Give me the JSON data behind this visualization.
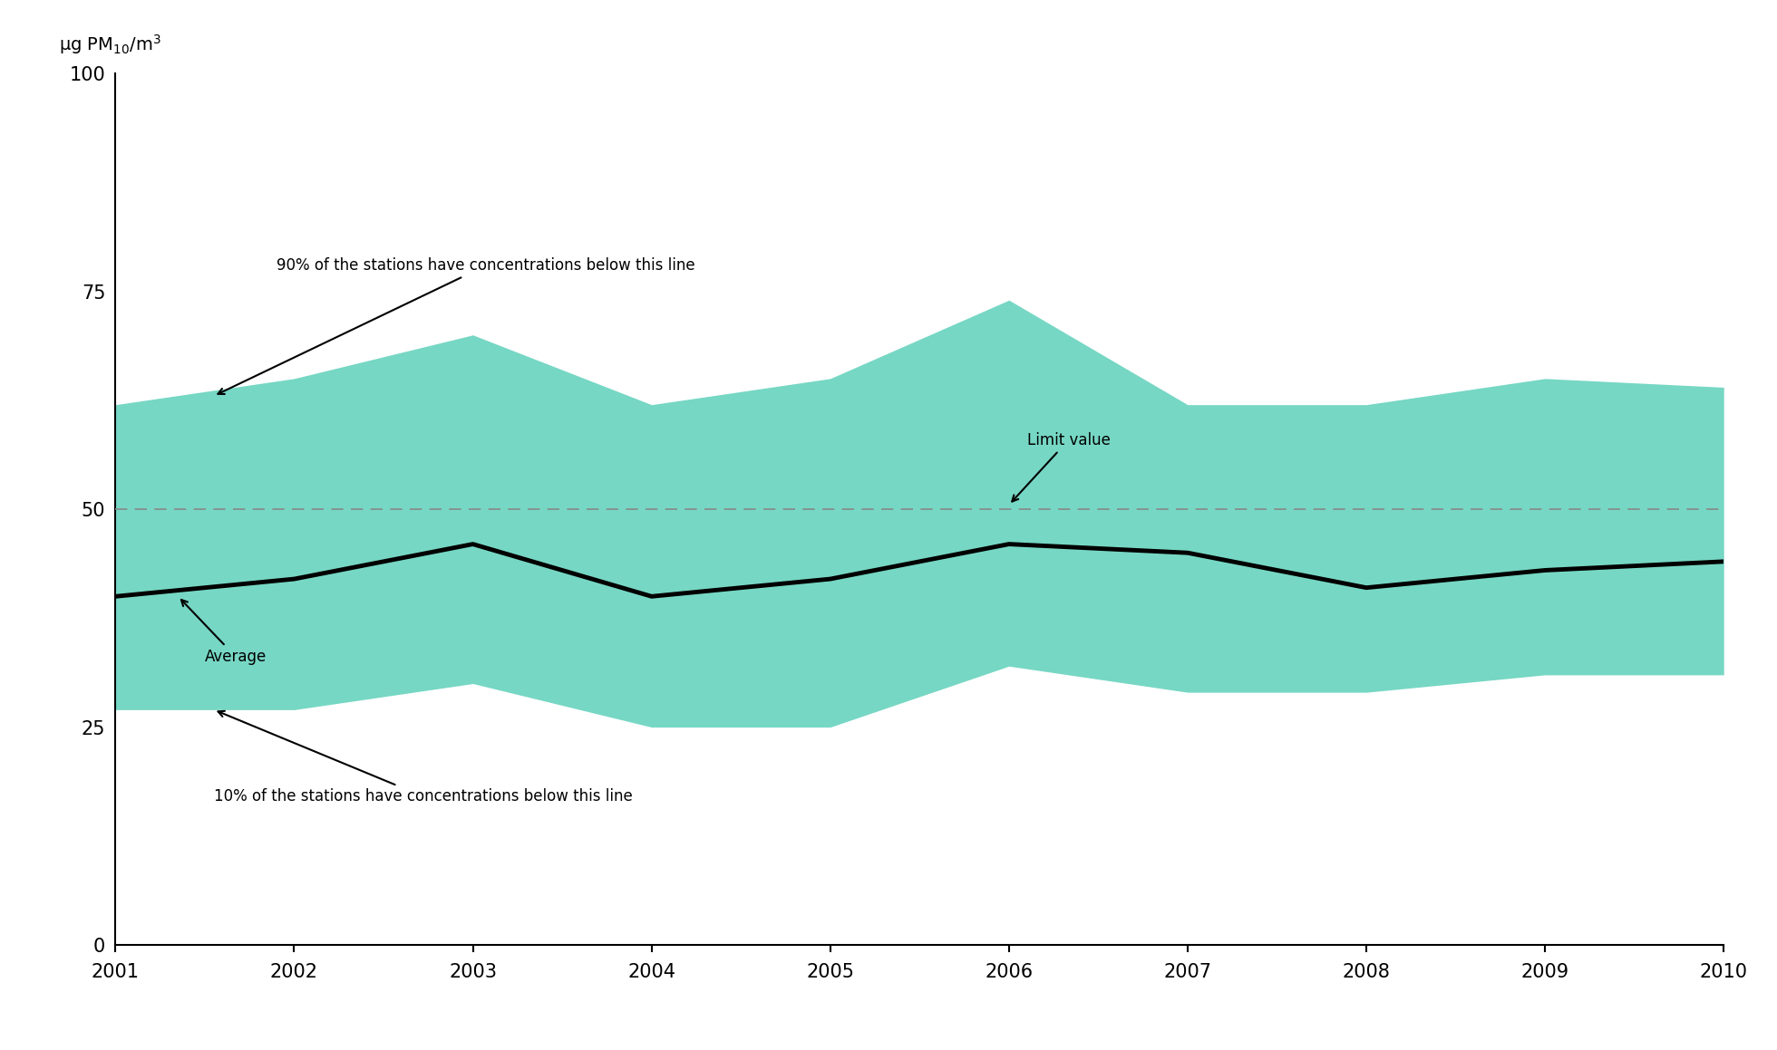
{
  "years": [
    2001,
    2002,
    2003,
    2004,
    2005,
    2006,
    2007,
    2008,
    2009,
    2010
  ],
  "avg": [
    40,
    42,
    46,
    40,
    42,
    46,
    45,
    41,
    43,
    44
  ],
  "p90": [
    62,
    65,
    70,
    62,
    65,
    74,
    62,
    62,
    65,
    64
  ],
  "p10": [
    27,
    27,
    30,
    25,
    25,
    32,
    29,
    29,
    31,
    31
  ],
  "limit_value": 50,
  "fill_color": "#76D7C4",
  "avg_color": "#000000",
  "limit_color": "#888888",
  "ylim": [
    0,
    100
  ],
  "yticks": [
    0,
    25,
    50,
    75,
    100
  ],
  "xticks": [
    2001,
    2002,
    2003,
    2004,
    2005,
    2006,
    2007,
    2008,
    2009,
    2010
  ]
}
